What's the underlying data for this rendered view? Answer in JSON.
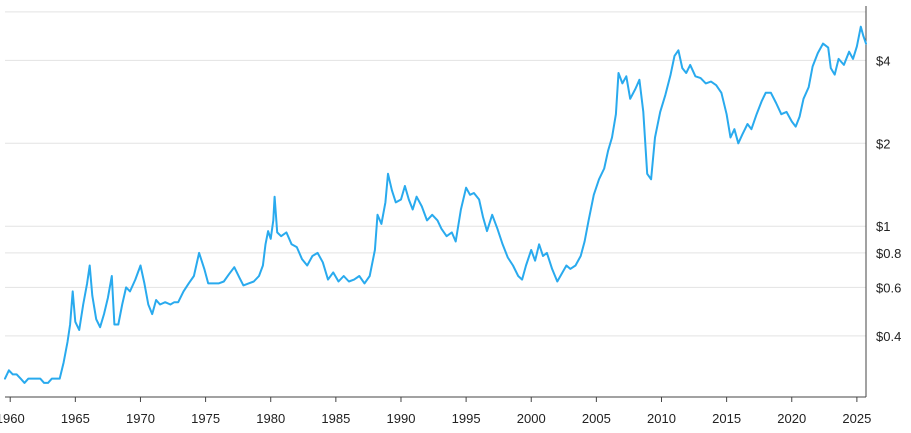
{
  "chart_data": {
    "type": "line",
    "title": "",
    "xlabel": "",
    "ylabel": "",
    "y_scale": "log",
    "y_axis_position": "right",
    "grid": "horizontal",
    "legend": "none",
    "xlim": [
      1959.6,
      2025.7
    ],
    "ylim": [
      0.24,
      6.3
    ],
    "x_ticks": [
      1960,
      1965,
      1970,
      1975,
      1980,
      1985,
      1990,
      1995,
      2000,
      2005,
      2010,
      2015,
      2020,
      2025
    ],
    "x_tick_labels": [
      "1960",
      "1965",
      "1970",
      "1975",
      "1980",
      "1985",
      "1990",
      "1995",
      "2000",
      "2005",
      "2010",
      "2015",
      "2020",
      "2025"
    ],
    "y_ticks": [
      0.4,
      0.6,
      0.8,
      1,
      2,
      4
    ],
    "y_tick_labels": [
      "$0.4",
      "$0.6",
      "$0.8",
      "$1",
      "$2",
      "$4"
    ],
    "gridlines": [
      0.4,
      0.6,
      0.8,
      1,
      2,
      4,
      6
    ],
    "series": [
      {
        "color": "#29aaee",
        "points": [
          [
            1959.6,
            0.28
          ],
          [
            1959.9,
            0.3
          ],
          [
            1960.2,
            0.29
          ],
          [
            1960.5,
            0.29
          ],
          [
            1960.8,
            0.28
          ],
          [
            1961.1,
            0.27
          ],
          [
            1961.4,
            0.28
          ],
          [
            1961.7,
            0.28
          ],
          [
            1962.0,
            0.28
          ],
          [
            1962.3,
            0.28
          ],
          [
            1962.6,
            0.27
          ],
          [
            1962.9,
            0.27
          ],
          [
            1963.2,
            0.28
          ],
          [
            1963.5,
            0.28
          ],
          [
            1963.8,
            0.28
          ],
          [
            1964.1,
            0.32
          ],
          [
            1964.4,
            0.38
          ],
          [
            1964.6,
            0.44
          ],
          [
            1964.8,
            0.58
          ],
          [
            1965.0,
            0.45
          ],
          [
            1965.3,
            0.42
          ],
          [
            1965.6,
            0.52
          ],
          [
            1965.9,
            0.62
          ],
          [
            1966.1,
            0.72
          ],
          [
            1966.3,
            0.56
          ],
          [
            1966.6,
            0.46
          ],
          [
            1966.9,
            0.43
          ],
          [
            1967.2,
            0.48
          ],
          [
            1967.5,
            0.55
          ],
          [
            1967.8,
            0.66
          ],
          [
            1968.0,
            0.44
          ],
          [
            1968.3,
            0.44
          ],
          [
            1968.6,
            0.52
          ],
          [
            1968.9,
            0.6
          ],
          [
            1969.2,
            0.58
          ],
          [
            1969.6,
            0.64
          ],
          [
            1970.0,
            0.72
          ],
          [
            1970.3,
            0.62
          ],
          [
            1970.6,
            0.52
          ],
          [
            1970.9,
            0.48
          ],
          [
            1971.2,
            0.54
          ],
          [
            1971.5,
            0.52
          ],
          [
            1971.9,
            0.53
          ],
          [
            1972.3,
            0.52
          ],
          [
            1972.6,
            0.53
          ],
          [
            1972.9,
            0.53
          ],
          [
            1973.3,
            0.58
          ],
          [
            1973.7,
            0.62
          ],
          [
            1974.1,
            0.66
          ],
          [
            1974.5,
            0.8
          ],
          [
            1974.9,
            0.7
          ],
          [
            1975.2,
            0.62
          ],
          [
            1975.6,
            0.62
          ],
          [
            1976.0,
            0.62
          ],
          [
            1976.4,
            0.63
          ],
          [
            1976.8,
            0.67
          ],
          [
            1977.2,
            0.71
          ],
          [
            1977.6,
            0.65
          ],
          [
            1977.9,
            0.61
          ],
          [
            1978.3,
            0.62
          ],
          [
            1978.7,
            0.63
          ],
          [
            1979.1,
            0.66
          ],
          [
            1979.4,
            0.72
          ],
          [
            1979.6,
            0.86
          ],
          [
            1979.8,
            0.96
          ],
          [
            1980.0,
            0.9
          ],
          [
            1980.2,
            1.05
          ],
          [
            1980.3,
            1.28
          ],
          [
            1980.5,
            0.95
          ],
          [
            1980.8,
            0.92
          ],
          [
            1981.2,
            0.95
          ],
          [
            1981.6,
            0.86
          ],
          [
            1982.0,
            0.84
          ],
          [
            1982.4,
            0.76
          ],
          [
            1982.8,
            0.72
          ],
          [
            1983.2,
            0.78
          ],
          [
            1983.6,
            0.8
          ],
          [
            1984.0,
            0.74
          ],
          [
            1984.4,
            0.64
          ],
          [
            1984.8,
            0.68
          ],
          [
            1985.2,
            0.63
          ],
          [
            1985.6,
            0.66
          ],
          [
            1986.0,
            0.63
          ],
          [
            1986.4,
            0.64
          ],
          [
            1986.8,
            0.66
          ],
          [
            1987.2,
            0.62
          ],
          [
            1987.6,
            0.66
          ],
          [
            1988.0,
            0.82
          ],
          [
            1988.2,
            1.1
          ],
          [
            1988.5,
            1.02
          ],
          [
            1988.8,
            1.22
          ],
          [
            1989.0,
            1.55
          ],
          [
            1989.3,
            1.35
          ],
          [
            1989.6,
            1.22
          ],
          [
            1990.0,
            1.25
          ],
          [
            1990.3,
            1.4
          ],
          [
            1990.6,
            1.25
          ],
          [
            1990.9,
            1.15
          ],
          [
            1991.2,
            1.28
          ],
          [
            1991.6,
            1.18
          ],
          [
            1992.0,
            1.05
          ],
          [
            1992.4,
            1.1
          ],
          [
            1992.8,
            1.05
          ],
          [
            1993.1,
            0.98
          ],
          [
            1993.5,
            0.92
          ],
          [
            1993.9,
            0.95
          ],
          [
            1994.2,
            0.88
          ],
          [
            1994.6,
            1.15
          ],
          [
            1995.0,
            1.38
          ],
          [
            1995.3,
            1.3
          ],
          [
            1995.6,
            1.32
          ],
          [
            1996.0,
            1.25
          ],
          [
            1996.3,
            1.08
          ],
          [
            1996.6,
            0.96
          ],
          [
            1997.0,
            1.1
          ],
          [
            1997.4,
            0.98
          ],
          [
            1997.8,
            0.86
          ],
          [
            1998.2,
            0.77
          ],
          [
            1998.6,
            0.72
          ],
          [
            1999.0,
            0.66
          ],
          [
            1999.3,
            0.64
          ],
          [
            1999.6,
            0.72
          ],
          [
            2000.0,
            0.82
          ],
          [
            2000.3,
            0.75
          ],
          [
            2000.6,
            0.86
          ],
          [
            2000.9,
            0.78
          ],
          [
            2001.2,
            0.8
          ],
          [
            2001.6,
            0.7
          ],
          [
            2002.0,
            0.63
          ],
          [
            2002.4,
            0.68
          ],
          [
            2002.7,
            0.72
          ],
          [
            2003.0,
            0.7
          ],
          [
            2003.4,
            0.72
          ],
          [
            2003.8,
            0.78
          ],
          [
            2004.1,
            0.88
          ],
          [
            2004.4,
            1.05
          ],
          [
            2004.8,
            1.3
          ],
          [
            2005.2,
            1.48
          ],
          [
            2005.6,
            1.62
          ],
          [
            2005.9,
            1.88
          ],
          [
            2006.2,
            2.1
          ],
          [
            2006.5,
            2.55
          ],
          [
            2006.7,
            3.6
          ],
          [
            2007.0,
            3.3
          ],
          [
            2007.3,
            3.5
          ],
          [
            2007.6,
            2.9
          ],
          [
            2008.0,
            3.15
          ],
          [
            2008.3,
            3.4
          ],
          [
            2008.6,
            2.6
          ],
          [
            2008.9,
            1.55
          ],
          [
            2009.2,
            1.48
          ],
          [
            2009.5,
            2.1
          ],
          [
            2009.9,
            2.6
          ],
          [
            2010.3,
            3.0
          ],
          [
            2010.7,
            3.55
          ],
          [
            2011.0,
            4.15
          ],
          [
            2011.3,
            4.35
          ],
          [
            2011.6,
            3.75
          ],
          [
            2011.9,
            3.6
          ],
          [
            2012.2,
            3.85
          ],
          [
            2012.6,
            3.5
          ],
          [
            2013.0,
            3.45
          ],
          [
            2013.4,
            3.3
          ],
          [
            2013.8,
            3.35
          ],
          [
            2014.2,
            3.25
          ],
          [
            2014.6,
            3.05
          ],
          [
            2015.0,
            2.55
          ],
          [
            2015.3,
            2.1
          ],
          [
            2015.6,
            2.25
          ],
          [
            2015.9,
            2.0
          ],
          [
            2016.2,
            2.15
          ],
          [
            2016.6,
            2.35
          ],
          [
            2016.9,
            2.25
          ],
          [
            2017.3,
            2.55
          ],
          [
            2017.7,
            2.85
          ],
          [
            2018.0,
            3.05
          ],
          [
            2018.4,
            3.05
          ],
          [
            2018.8,
            2.8
          ],
          [
            2019.2,
            2.55
          ],
          [
            2019.6,
            2.6
          ],
          [
            2020.0,
            2.4
          ],
          [
            2020.3,
            2.3
          ],
          [
            2020.6,
            2.5
          ],
          [
            2020.9,
            2.9
          ],
          [
            2021.3,
            3.2
          ],
          [
            2021.6,
            3.8
          ],
          [
            2022.0,
            4.25
          ],
          [
            2022.4,
            4.6
          ],
          [
            2022.8,
            4.45
          ],
          [
            2023.0,
            3.75
          ],
          [
            2023.3,
            3.55
          ],
          [
            2023.6,
            4.05
          ],
          [
            2024.0,
            3.85
          ],
          [
            2024.4,
            4.3
          ],
          [
            2024.7,
            4.05
          ],
          [
            2025.0,
            4.5
          ],
          [
            2025.3,
            5.3
          ],
          [
            2025.5,
            4.9
          ],
          [
            2025.7,
            4.6
          ]
        ]
      }
    ]
  }
}
